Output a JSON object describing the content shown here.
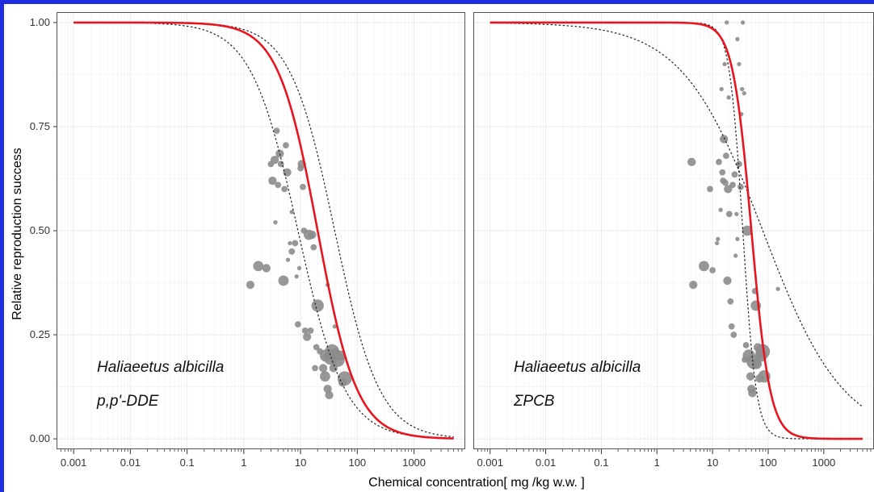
{
  "colors": {
    "frame_border": "#1f2ee0",
    "fit_line": "#e8141e",
    "points": "#8c8c8c",
    "ci_line": "#222222",
    "grid": "#ebebeb",
    "panel_border": "#555555"
  },
  "chart_data": {
    "type": "scatter",
    "xlabel": "Chemical concentration[ mg /kg w.w. ]",
    "ylabel": "Relative reproduction success",
    "x_scale": "log",
    "xlim": [
      0.0005,
      8000
    ],
    "ylim": [
      -0.025,
      1.025
    ],
    "x_ticks": [
      0.001,
      0.01,
      0.1,
      1,
      10,
      100,
      1000
    ],
    "x_tick_labels": [
      "0.001",
      "0.01",
      "0.1",
      "1",
      "10",
      "100",
      "1000"
    ],
    "y_ticks": [
      0,
      0.25,
      0.5,
      0.75,
      1
    ],
    "y_tick_labels": [
      "0.00",
      "0.25",
      "0.50",
      "0.75",
      "1.00"
    ],
    "grid": true,
    "panels": [
      {
        "annotation": [
          "Haliaeetus albicilla",
          "p,p'-DDE"
        ],
        "fit": {
          "ec50": 20,
          "slope": 1.25
        },
        "ci_lower": {
          "ec50": 9,
          "slope": 1.05
        },
        "ci_upper": {
          "ec50": 40,
          "slope": 1.1
        },
        "points": [
          [
            1.3,
            0.37,
            3
          ],
          [
            1.8,
            0.415,
            4
          ],
          [
            2.5,
            0.41,
            3
          ],
          [
            3.0,
            0.66,
            2
          ],
          [
            3.2,
            0.62,
            3
          ],
          [
            3.5,
            0.67,
            3
          ],
          [
            3.8,
            0.74,
            2
          ],
          [
            4.0,
            0.61,
            2
          ],
          [
            4.3,
            0.685,
            3
          ],
          [
            4.5,
            0.66,
            2
          ],
          [
            5.0,
            0.38,
            4
          ],
          [
            5.2,
            0.6,
            2
          ],
          [
            5.5,
            0.705,
            2
          ],
          [
            5.8,
            0.64,
            3
          ],
          [
            3.6,
            0.52,
            1
          ],
          [
            6.5,
            0.47,
            1
          ],
          [
            7.0,
            0.45,
            2
          ],
          [
            8.0,
            0.47,
            2
          ],
          [
            8.5,
            0.39,
            1
          ],
          [
            9.0,
            0.275,
            2
          ],
          [
            10.0,
            0.65,
            2
          ],
          [
            10.5,
            0.66,
            3
          ],
          [
            11.0,
            0.605,
            2
          ],
          [
            11.5,
            0.5,
            2
          ],
          [
            12.0,
            0.26,
            2
          ],
          [
            13.0,
            0.245,
            3
          ],
          [
            14.0,
            0.49,
            4
          ],
          [
            15.0,
            0.26,
            2
          ],
          [
            16.0,
            0.49,
            3
          ],
          [
            17.0,
            0.46,
            2
          ],
          [
            18.0,
            0.17,
            2
          ],
          [
            19.0,
            0.22,
            2
          ],
          [
            20.0,
            0.32,
            5
          ],
          [
            22.0,
            0.21,
            2
          ],
          [
            25.0,
            0.17,
            3
          ],
          [
            27.0,
            0.15,
            4
          ],
          [
            28.0,
            0.2,
            5
          ],
          [
            30.0,
            0.12,
            3
          ],
          [
            32.0,
            0.105,
            3
          ],
          [
            34.0,
            0.195,
            6
          ],
          [
            36.0,
            0.21,
            6
          ],
          [
            38.0,
            0.17,
            3
          ],
          [
            40.0,
            0.205,
            4
          ],
          [
            45.0,
            0.19,
            6
          ],
          [
            50.0,
            0.2,
            4
          ],
          [
            55.0,
            0.135,
            3
          ],
          [
            60.0,
            0.145,
            6
          ],
          [
            30.0,
            0.37,
            1
          ],
          [
            40.0,
            0.27,
            1
          ],
          [
            7.0,
            0.545,
            1
          ],
          [
            9.5,
            0.41,
            1
          ],
          [
            6.0,
            0.43,
            1
          ]
        ]
      },
      {
        "annotation": [
          "Haliaeetus albicilla",
          "ΣPCB"
        ],
        "fit": {
          "ec50": 50,
          "slope": 2.6
        },
        "ci_lower": {
          "ec50": 35,
          "slope": 3.6
        },
        "ci_upper": {
          "ec50": 80,
          "slope": 0.6
        },
        "points": [
          [
            4.5,
            0.37,
            3
          ],
          [
            4.2,
            0.665,
            3
          ],
          [
            7.0,
            0.415,
            4
          ],
          [
            9.0,
            0.6,
            2
          ],
          [
            10.0,
            0.405,
            2
          ],
          [
            12.0,
            0.47,
            1
          ],
          [
            12.5,
            0.48,
            1
          ],
          [
            13.0,
            0.665,
            2
          ],
          [
            14.0,
            0.55,
            1
          ],
          [
            14.5,
            0.84,
            1
          ],
          [
            15.0,
            0.64,
            2
          ],
          [
            15.5,
            0.62,
            2
          ],
          [
            16.0,
            0.72,
            3
          ],
          [
            16.5,
            0.9,
            1
          ],
          [
            17.0,
            0.615,
            2
          ],
          [
            17.5,
            0.68,
            2
          ],
          [
            18.0,
            1.0,
            1
          ],
          [
            18.5,
            0.38,
            3
          ],
          [
            19.0,
            0.6,
            3
          ],
          [
            19.5,
            0.82,
            1
          ],
          [
            20.0,
            0.54,
            2
          ],
          [
            21.0,
            0.33,
            2
          ],
          [
            22.0,
            0.27,
            2
          ],
          [
            23.0,
            0.61,
            2
          ],
          [
            24.0,
            0.25,
            2
          ],
          [
            25.0,
            0.635,
            2
          ],
          [
            26.0,
            0.44,
            1
          ],
          [
            27.0,
            0.54,
            1
          ],
          [
            28.0,
            0.48,
            1
          ],
          [
            30.0,
            0.66,
            2
          ],
          [
            32.0,
            0.605,
            2
          ],
          [
            33.0,
            0.78,
            1
          ],
          [
            34.0,
            0.84,
            1
          ],
          [
            35.0,
            1.0,
            1
          ],
          [
            37.0,
            0.83,
            1
          ],
          [
            38.0,
            0.19,
            2
          ],
          [
            40.0,
            0.225,
            2
          ],
          [
            42.0,
            0.5,
            4
          ],
          [
            45.0,
            0.2,
            5
          ],
          [
            48.0,
            0.15,
            3
          ],
          [
            50.0,
            0.12,
            3
          ],
          [
            52.0,
            0.11,
            3
          ],
          [
            55.0,
            0.185,
            6
          ],
          [
            58.0,
            0.355,
            2
          ],
          [
            60.0,
            0.32,
            4
          ],
          [
            62.0,
            0.18,
            4
          ],
          [
            65.0,
            0.22,
            3
          ],
          [
            70.0,
            0.145,
            3
          ],
          [
            75.0,
            0.2,
            5
          ],
          [
            80.0,
            0.21,
            6
          ],
          [
            85.0,
            0.15,
            5
          ],
          [
            150.0,
            0.36,
            1
          ],
          [
            28.0,
            0.96,
            1
          ],
          [
            30.0,
            0.9,
            1
          ]
        ]
      }
    ]
  }
}
